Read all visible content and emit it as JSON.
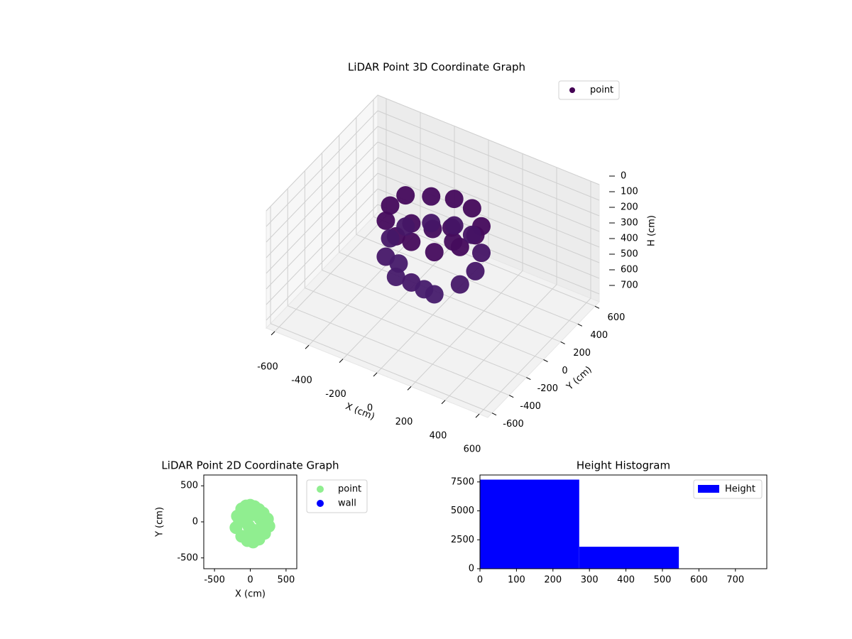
{
  "chart_data": [
    {
      "type": "scatter3d",
      "title": "LiDAR Point 3D Coordinate Graph",
      "xlabel": "X (cm)",
      "ylabel": "Y (cm)",
      "zlabel": "H (cm)",
      "xlim": [
        -650,
        650
      ],
      "ylim": [
        -650,
        650
      ],
      "zlim": [
        0,
        750
      ],
      "z_inverted": true,
      "xticks": [
        -600,
        -400,
        -200,
        0,
        200,
        400,
        600
      ],
      "yticks": [
        -600,
        -400,
        -200,
        0,
        200,
        400,
        600
      ],
      "zticks": [
        0,
        100,
        200,
        300,
        400,
        500,
        600,
        700
      ],
      "grid": true,
      "legend": "upper right",
      "series": [
        {
          "name": "point",
          "color": "#440154",
          "x": [
            -200,
            -100,
            0,
            120,
            220,
            250,
            220,
            120,
            0,
            -120,
            -220,
            -250,
            -100,
            80,
            0,
            150,
            -200,
            -100,
            0,
            120,
            220,
            250,
            220,
            120,
            0,
            -120,
            -220,
            -250,
            -150,
            50
          ],
          "y": [
            -150,
            -230,
            -250,
            -220,
            -120,
            0,
            130,
            220,
            250,
            220,
            120,
            0,
            -50,
            60,
            0,
            -60,
            -150,
            -230,
            -250,
            -220,
            -120,
            0,
            130,
            220,
            250,
            220,
            120,
            0,
            -100,
            -200
          ],
          "z": [
            150,
            160,
            140,
            170,
            150,
            130,
            160,
            140,
            150,
            170,
            150,
            160,
            180,
            190,
            200,
            180,
            380,
            420,
            400,
            440,
            390,
            360,
            330,
            310,
            320,
            340,
            350,
            370,
            430,
            450
          ]
        }
      ]
    },
    {
      "type": "scatter",
      "title": "LiDAR Point 2D Coordinate Graph",
      "xlabel": "X (cm)",
      "ylabel": "Y (cm)",
      "xlim": [
        -650,
        650
      ],
      "ylim": [
        -650,
        650
      ],
      "xticks": [
        -500,
        0,
        500
      ],
      "yticks": [
        -500,
        0,
        500
      ],
      "legend": "outside right",
      "series": [
        {
          "name": "point",
          "color": "#90ee90",
          "x": [
            -180,
            -120,
            -60,
            0,
            60,
            120,
            180,
            240,
            260,
            200,
            120,
            40,
            -40,
            -120,
            -200,
            -150,
            -60,
            40,
            140,
            220,
            80,
            -20,
            100,
            0
          ],
          "y": [
            80,
            180,
            220,
            230,
            210,
            170,
            120,
            40,
            -60,
            -160,
            -240,
            -280,
            -260,
            -200,
            -80,
            0,
            80,
            100,
            40,
            -40,
            -120,
            -60,
            120,
            -180
          ]
        },
        {
          "name": "wall",
          "color": "#0000ff",
          "x": [],
          "y": []
        }
      ]
    },
    {
      "type": "histogram",
      "title": "Height Histogram",
      "name": "Height",
      "color": "#0000ff",
      "bins": [
        0,
        272,
        545
      ],
      "values": [
        7700,
        1900
      ],
      "xlim": [
        0,
        786
      ],
      "ylim": [
        0,
        8100
      ],
      "xticks": [
        0,
        100,
        200,
        300,
        400,
        500,
        600,
        700
      ],
      "yticks": [
        0,
        2500,
        5000,
        7500
      ],
      "legend": "upper right"
    }
  ]
}
